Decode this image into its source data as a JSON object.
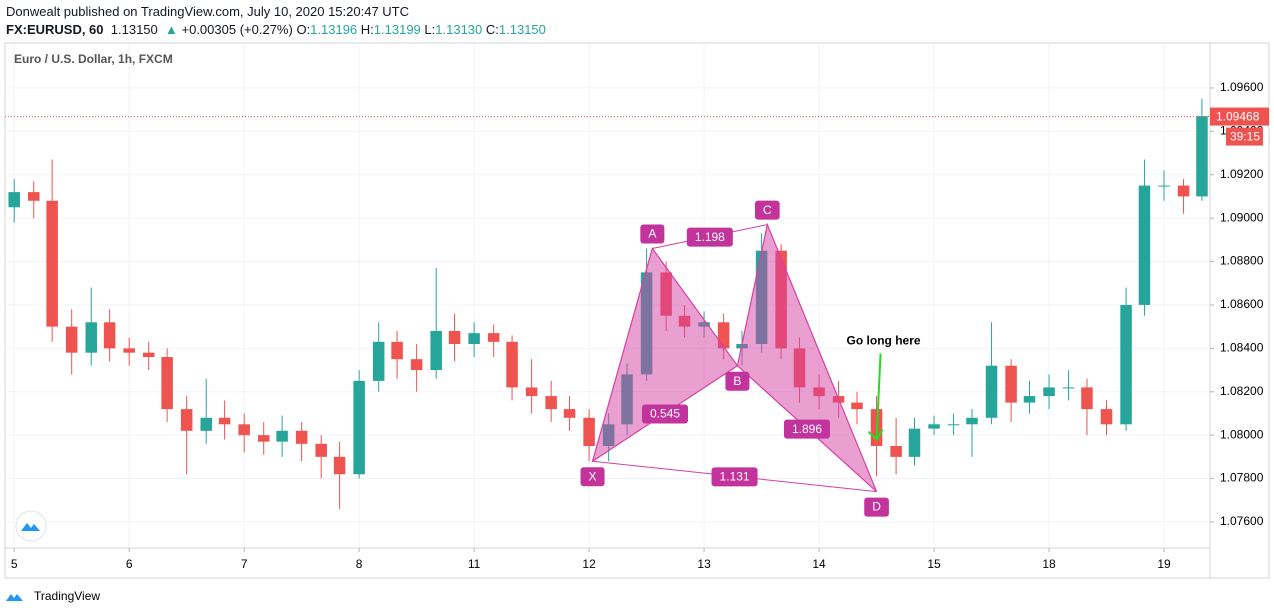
{
  "header": {
    "published": "Donwealt published on TradingView.com, July 10, 2020 15:20:47 UTC",
    "symbol": "FX:EURUSD, 60",
    "price": "1.13150",
    "arrow": "▲",
    "change": "+0.00305 (+0.27%)",
    "ohlc": [
      {
        "label": "O:",
        "value": "1.13196"
      },
      {
        "label": "H:",
        "value": "1.13199"
      },
      {
        "label": "L:",
        "value": "1.13130"
      },
      {
        "label": "C:",
        "value": "1.13150"
      }
    ]
  },
  "footer": "TradingView",
  "chart_data": {
    "type": "candlestick",
    "title": "Euro / U.S. Dollar, 1h, FXCM",
    "up_color": "#26a69a",
    "down_color": "#ef5350",
    "grid": true,
    "x": [
      0,
      0.17,
      0.33,
      0.5,
      0.67,
      0.83,
      1,
      1.17,
      1.33,
      1.5,
      1.67,
      1.83,
      2,
      2.17,
      2.33,
      2.5,
      2.67,
      2.83,
      3,
      3.17,
      3.33,
      3.5,
      3.67,
      3.83,
      4,
      4.17,
      4.33,
      4.5,
      4.67,
      4.83,
      5,
      5.17,
      5.33,
      5.5,
      5.67,
      5.83,
      6,
      6.17,
      6.33,
      6.5,
      6.67,
      6.83,
      7,
      7.17,
      7.33,
      7.5,
      7.67,
      7.83,
      8,
      8.17,
      8.33,
      8.5,
      8.67,
      8.83,
      9,
      9.17,
      9.33,
      9.5,
      9.67,
      9.83,
      10,
      10.17,
      10.33
    ],
    "open": [
      1.0905,
      1.0912,
      1.0908,
      1.085,
      1.0838,
      1.0852,
      1.084,
      1.0838,
      1.0836,
      1.0812,
      1.0802,
      1.0808,
      1.0805,
      1.08,
      1.0797,
      1.0802,
      1.0796,
      1.079,
      1.0782,
      1.0825,
      1.0843,
      1.0835,
      1.083,
      1.0848,
      1.0842,
      1.0847,
      1.0843,
      1.0822,
      1.0818,
      1.0812,
      1.0808,
      1.0795,
      1.0805,
      1.0828,
      1.0875,
      1.0855,
      1.085,
      1.0852,
      1.084,
      1.0842,
      1.0885,
      1.084,
      1.0822,
      1.0818,
      1.0815,
      1.0812,
      1.0795,
      1.079,
      1.0803,
      1.0805,
      1.0805,
      1.0808,
      1.0832,
      1.0815,
      1.0818,
      1.0822,
      1.0822,
      1.0812,
      1.0805,
      1.086,
      1.0915,
      1.0915,
      1.091
    ],
    "high": [
      1.0918,
      1.0917,
      1.0927,
      1.0858,
      1.0868,
      1.0858,
      1.0845,
      1.0843,
      1.084,
      1.0818,
      1.0826,
      1.0816,
      1.081,
      1.0806,
      1.0809,
      1.0806,
      1.08,
      1.0797,
      1.083,
      1.0852,
      1.0848,
      1.0842,
      1.0877,
      1.0856,
      1.0852,
      1.0851,
      1.0846,
      1.0835,
      1.0825,
      1.0818,
      1.0812,
      1.081,
      1.0833,
      1.0886,
      1.088,
      1.086,
      1.0857,
      1.0856,
      1.0848,
      1.0893,
      1.0888,
      1.0845,
      1.0828,
      1.0825,
      1.082,
      1.0818,
      1.0808,
      1.0808,
      1.0809,
      1.081,
      1.0812,
      1.0852,
      1.0835,
      1.0825,
      1.0828,
      1.083,
      1.0826,
      1.0816,
      1.0868,
      1.0927,
      1.0922,
      1.0918,
      1.0955
    ],
    "low": [
      1.0898,
      1.09,
      1.0843,
      1.0828,
      1.0832,
      1.0834,
      1.0832,
      1.083,
      1.0806,
      1.0782,
      1.0796,
      1.0798,
      1.0792,
      1.0791,
      1.079,
      1.0788,
      1.078,
      1.0766,
      1.078,
      1.082,
      1.0826,
      1.082,
      1.0826,
      1.0834,
      1.0836,
      1.0836,
      1.0816,
      1.081,
      1.0806,
      1.0802,
      1.0788,
      1.0788,
      1.08,
      1.0825,
      1.0848,
      1.0845,
      1.0845,
      1.0835,
      1.0832,
      1.0838,
      1.0835,
      1.0815,
      1.0812,
      1.0808,
      1.0805,
      1.0781,
      1.0782,
      1.0786,
      1.08,
      1.08,
      1.079,
      1.0805,
      1.0806,
      1.081,
      1.0812,
      1.0816,
      1.08,
      1.08,
      1.0802,
      1.0855,
      1.0908,
      1.0902,
      1.0908
    ],
    "close": [
      1.0912,
      1.0908,
      1.085,
      1.0838,
      1.0852,
      1.084,
      1.0838,
      1.0836,
      1.0812,
      1.0802,
      1.0808,
      1.0805,
      1.08,
      1.0797,
      1.0802,
      1.0796,
      1.079,
      1.0782,
      1.0825,
      1.0843,
      1.0835,
      1.083,
      1.0848,
      1.0842,
      1.0847,
      1.0843,
      1.0822,
      1.0818,
      1.0812,
      1.0808,
      1.0795,
      1.0805,
      1.0828,
      1.0875,
      1.0855,
      1.085,
      1.0852,
      1.084,
      1.0842,
      1.0885,
      1.084,
      1.0822,
      1.0818,
      1.0815,
      1.0812,
      1.0795,
      1.079,
      1.0803,
      1.0805,
      1.0805,
      1.0808,
      1.0832,
      1.0815,
      1.0818,
      1.0822,
      1.0822,
      1.0812,
      1.0805,
      1.086,
      1.0915,
      1.0915,
      1.091,
      1.0947
    ],
    "xlim": [
      -0.08,
      10.4
    ],
    "xticks": [
      {
        "value": 0,
        "label": "5"
      },
      {
        "value": 1,
        "label": "6"
      },
      {
        "value": 2,
        "label": "7"
      },
      {
        "value": 3,
        "label": "8"
      },
      {
        "value": 4,
        "label": "11"
      },
      {
        "value": 5,
        "label": "12"
      },
      {
        "value": 6,
        "label": "13"
      },
      {
        "value": 7,
        "label": "14"
      },
      {
        "value": 8,
        "label": "15"
      },
      {
        "value": 9,
        "label": "18"
      },
      {
        "value": 10,
        "label": "19"
      }
    ],
    "ylim": [
      1.0748,
      1.09807
    ],
    "yticks": [
      {
        "value": 1.076,
        "label": "1.07600"
      },
      {
        "value": 1.078,
        "label": "1.07800"
      },
      {
        "value": 1.08,
        "label": "1.08000"
      },
      {
        "value": 1.082,
        "label": "1.08200"
      },
      {
        "value": 1.084,
        "label": "1.08400"
      },
      {
        "value": 1.086,
        "label": "1.08600"
      },
      {
        "value": 1.088,
        "label": "1.08800"
      },
      {
        "value": 1.09,
        "label": "1.09000"
      },
      {
        "value": 1.092,
        "label": "1.09200"
      },
      {
        "value": 1.094,
        "label": "1.09400"
      },
      {
        "value": 1.096,
        "label": "1.09600"
      }
    ],
    "last_price": 1.09468,
    "countdown": "39:15",
    "pattern": {
      "color": "#d63fa3",
      "points": {
        "X": {
          "label": "X",
          "x": 5.03,
          "y": 1.0788
        },
        "A": {
          "label": "A",
          "x": 5.55,
          "y": 1.0886
        },
        "B": {
          "label": "B",
          "x": 6.29,
          "y": 1.0832
        },
        "C": {
          "label": "C",
          "x": 6.55,
          "y": 1.0897
        },
        "D": {
          "label": "D",
          "x": 7.5,
          "y": 1.0774
        }
      },
      "ratios": {
        "AC": 1.198,
        "XB": 0.545,
        "BD": 1.896,
        "XD": 1.131
      }
    },
    "annotation": "Go long here"
  }
}
